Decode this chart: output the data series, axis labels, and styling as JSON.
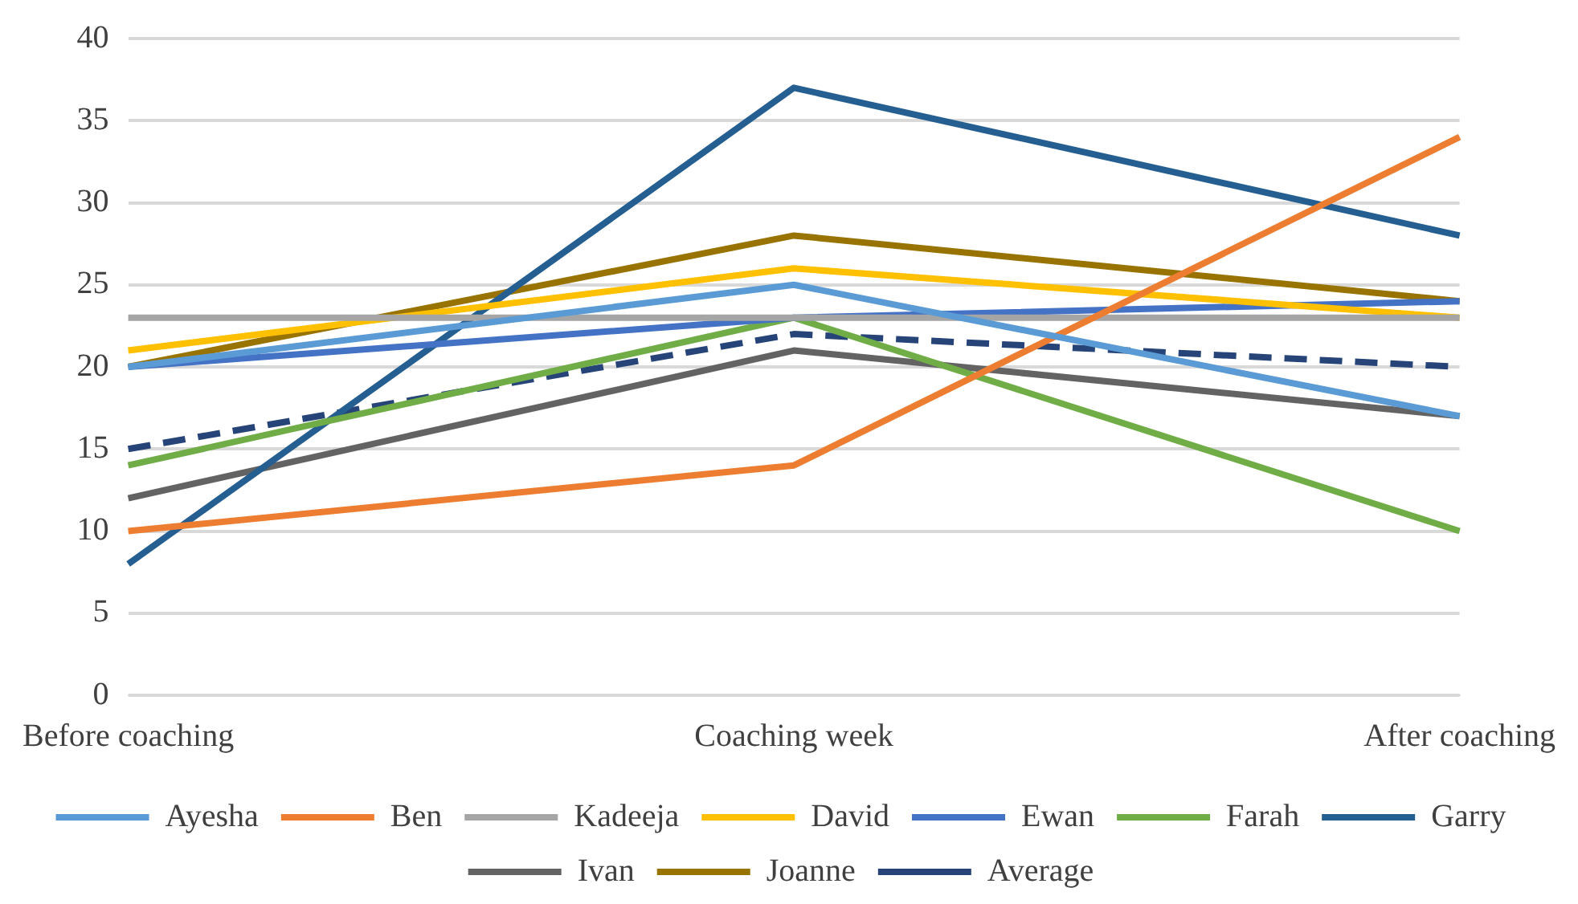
{
  "chart_data": {
    "type": "line",
    "categories": [
      "Before coaching",
      "Coaching week",
      "After coaching"
    ],
    "ylim": [
      0,
      40
    ],
    "yticks": [
      0,
      5,
      10,
      15,
      20,
      25,
      30,
      35,
      40
    ],
    "grid": "y",
    "legend": "bottom",
    "marker": "none",
    "line_style": "solid",
    "series": [
      {
        "name": "Ayesha",
        "color": "#5b9bd5",
        "values": [
          20,
          25,
          17
        ]
      },
      {
        "name": "Ben",
        "color": "#ed7d31",
        "values": [
          10,
          14,
          34
        ]
      },
      {
        "name": "Kadeeja",
        "color": "#a5a5a5",
        "values": [
          23,
          23,
          23
        ]
      },
      {
        "name": "David",
        "color": "#ffc000",
        "values": [
          21,
          26,
          23
        ]
      },
      {
        "name": "Ewan",
        "color": "#4472c4",
        "values": [
          20,
          23,
          24
        ]
      },
      {
        "name": "Farah",
        "color": "#70ad47",
        "values": [
          14,
          23,
          10
        ]
      },
      {
        "name": "Garry",
        "color": "#255e91",
        "values": [
          8,
          37,
          28
        ]
      },
      {
        "name": "Ivan",
        "color": "#636363",
        "values": [
          12,
          21,
          17
        ]
      },
      {
        "name": "Joanne",
        "color": "#997300",
        "values": [
          20,
          28,
          24
        ]
      },
      {
        "name": "Average",
        "color": "#264478",
        "values": [
          15,
          22,
          20
        ],
        "line_style": "dashed"
      }
    ]
  }
}
